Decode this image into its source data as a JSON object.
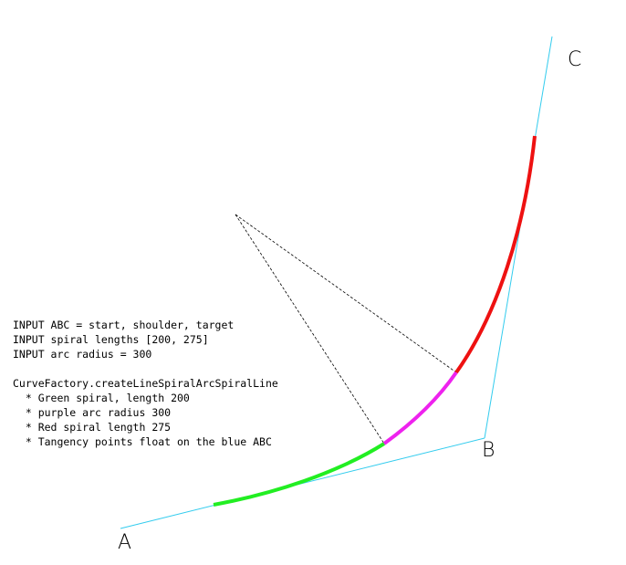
{
  "points": {
    "a": "A",
    "b": "B",
    "c": "C"
  },
  "notes": {
    "line1": "INPUT ABC = start, shoulder, target",
    "line2": "INPUT spiral lengths [200, 275]",
    "line3": "INPUT arc radius = 300",
    "line4": "CurveFactory.createLineSpiralArcSpiralLine",
    "bullet1": "  * Green spiral, length 200",
    "bullet2": "  * purple arc radius 300",
    "bullet3": "  * Red spiral length 275",
    "bullet4": "  * Tangency points float on the blue ABC"
  },
  "colors": {
    "baseline": "#33ccee",
    "green_spiral": "#22ee22",
    "purple_arc": "#ee22ee",
    "red_spiral": "#ee1111",
    "construction": "#000000"
  }
}
